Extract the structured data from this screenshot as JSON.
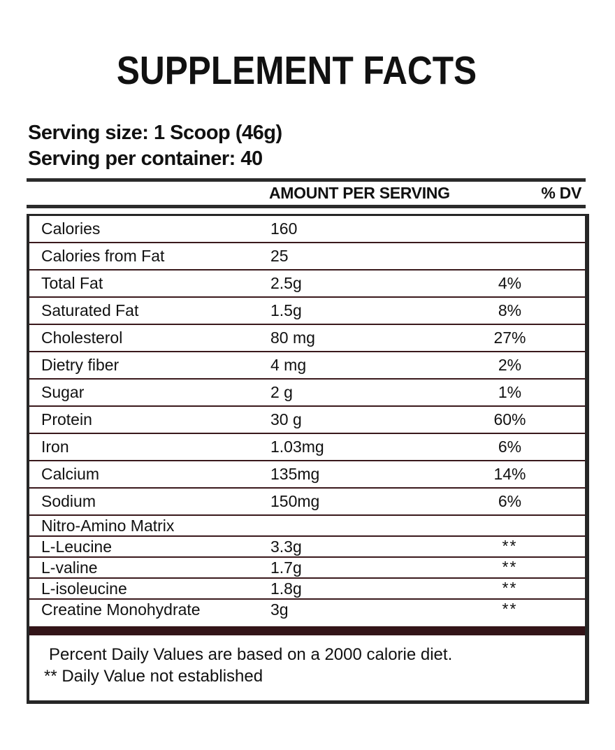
{
  "label": {
    "title": "SUPPLEMENT FACTS",
    "serving_size_line": "Serving size: 1 Scoop (46g)",
    "servings_per_container_line": "Serving per container: 40"
  },
  "table": {
    "amount_header": "AMOUNT PER SERVING",
    "dv_header": "% DV",
    "rows": [
      {
        "label": "Calories",
        "amount": "160",
        "dv": ""
      },
      {
        "label": "Calories from Fat",
        "amount": "25",
        "dv": ""
      },
      {
        "label": "Total Fat",
        "amount": "2.5g",
        "dv": "4%"
      },
      {
        "label": "Saturated Fat",
        "amount": "1.5g",
        "dv": "8%"
      },
      {
        "label": "Cholesterol",
        "amount": "80 mg",
        "dv": "27%"
      },
      {
        "label": "Dietry fiber",
        "amount": "4 mg",
        "dv": "2%"
      },
      {
        "label": "Sugar",
        "amount": "2 g",
        "dv": "1%"
      },
      {
        "label": "Protein",
        "amount": "30 g",
        "dv": "60%"
      },
      {
        "label": "Iron",
        "amount": "1.03mg",
        "dv": "6%"
      },
      {
        "label": "Calcium",
        "amount": "135mg",
        "dv": "14%"
      },
      {
        "label": "Sodium",
        "amount": "150mg",
        "dv": "6%"
      },
      {
        "label": "Nitro-Amino Matrix",
        "amount": "",
        "dv": ""
      },
      {
        "label": "L-Leucine",
        "amount": "3.3g",
        "dv": "**"
      },
      {
        "label": "L-valine",
        "amount": "1.7g",
        "dv": "**"
      },
      {
        "label": "L-isoleucine",
        "amount": "1.8g",
        "dv": "**"
      },
      {
        "label": "Creatine Monohydrate",
        "amount": "3g",
        "dv": "**"
      }
    ]
  },
  "footnotes": {
    "daily_values": "Percent Daily Values are based on a 2000 calorie diet.",
    "not_established": "** Daily Value not established"
  },
  "colors": {
    "text": "#111111",
    "rule_black": "#2b2b2b",
    "border_dark": "#262626",
    "separator_maroon": "#3a191c",
    "bar_maroon": "#331418"
  }
}
